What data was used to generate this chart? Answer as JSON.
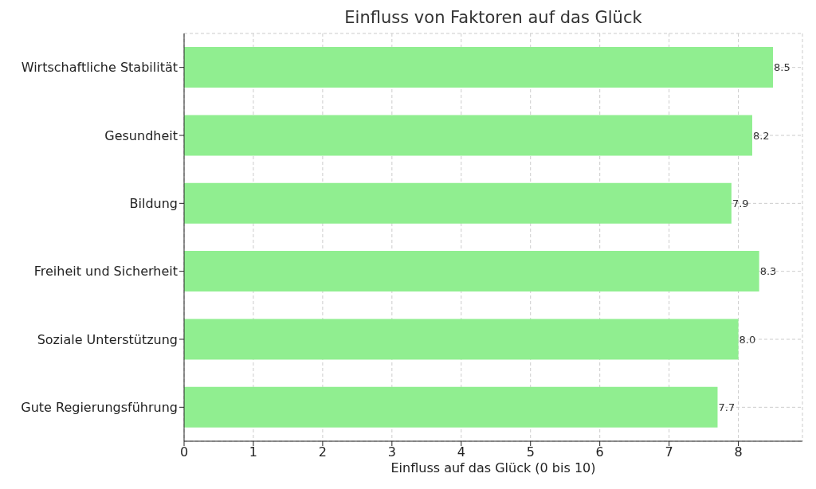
{
  "chart_data": {
    "type": "bar",
    "orientation": "horizontal",
    "title": "Einfluss von Faktoren auf das Glück",
    "xlabel": "Einfluss auf das Glück (0 bis 10)",
    "categories": [
      "Wirtschaftliche Stabilität",
      "Gesundheit",
      "Bildung",
      "Freiheit und Sicherheit",
      "Soziale Unterstützung",
      "Gute Regierungsführung"
    ],
    "values": [
      8.5,
      8.2,
      7.9,
      8.3,
      8.0,
      7.7
    ],
    "value_labels": [
      "8.5",
      "8.2",
      "7.9",
      "8.3",
      "8.0",
      "7.7"
    ],
    "color": "#90ee90",
    "xlim": [
      0,
      8.925
    ],
    "xticks": [
      0,
      1,
      2,
      3,
      4,
      5,
      6,
      7,
      8
    ],
    "grid": true
  }
}
